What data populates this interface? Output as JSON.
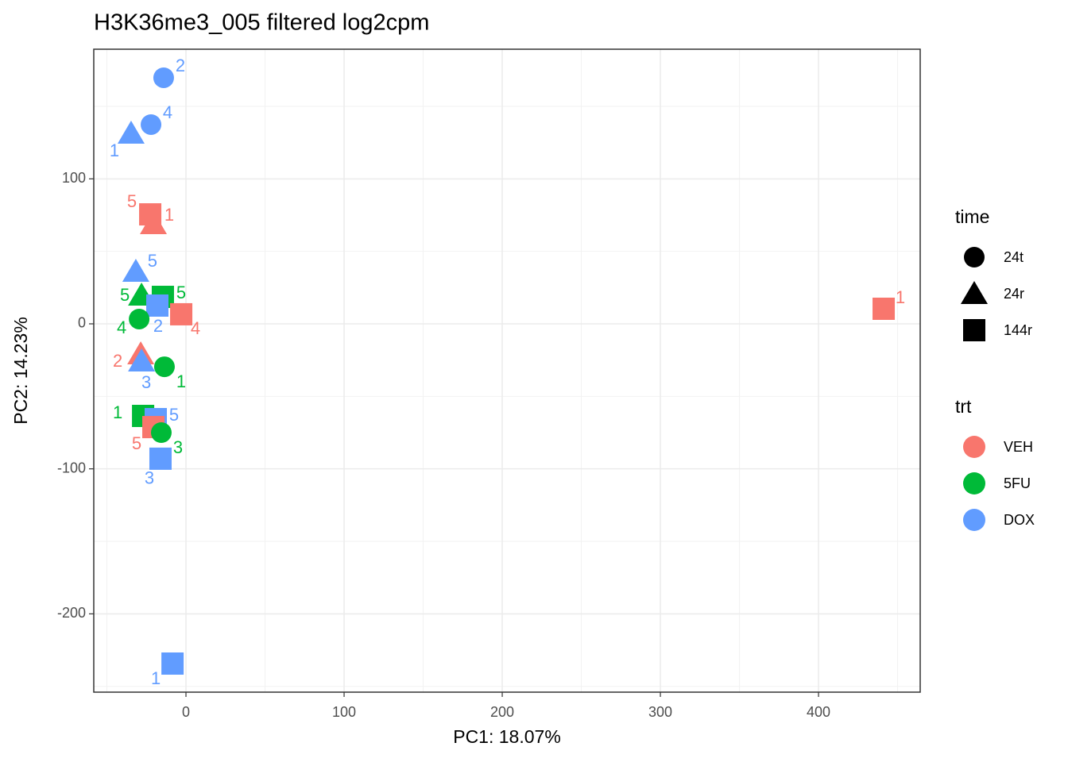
{
  "chart_data": {
    "type": "scatter",
    "title": "H3K36me3_005 filtered log2cpm",
    "x_label": "PC1: 18.07%",
    "y_label": "PC2: 14.23%",
    "xlim": [
      -58.3,
      464.3
    ],
    "ylim": [
      -254,
      189.4
    ],
    "xticks": [
      0,
      100,
      200,
      300,
      400
    ],
    "yticks": [
      -200,
      -100,
      0,
      100
    ],
    "grid": true,
    "x": [
      -14.1,
      -22.1,
      -34.7,
      -22.6,
      -20.6,
      -31.7,
      -28.1,
      -14.6,
      -18.1,
      -3.0,
      -29.6,
      441.2,
      -28.6,
      -28.1,
      -13.6,
      -27.1,
      -19.1,
      -20.6,
      -15.6,
      -16.1,
      -8.5
    ],
    "y": [
      169.7,
      137.4,
      131.4,
      75.5,
      69,
      36.1,
      19.7,
      18.6,
      12.6,
      6.6,
      3.3,
      10.4,
      -20.8,
      -25.7,
      -29.6,
      -63.5,
      -65.7,
      -71.2,
      -75,
      -93,
      -234.3
    ],
    "labels": [
      "2",
      "4",
      "1",
      "5",
      "1",
      "5",
      "5",
      "5",
      "2",
      "4",
      "4",
      "1",
      "2",
      "3",
      "1",
      "1",
      "5",
      "5",
      "3",
      "3",
      "1"
    ],
    "trt": [
      "DOX",
      "DOX",
      "DOX",
      "VEH",
      "VEH",
      "DOX",
      "5FU",
      "5FU",
      "DOX",
      "VEH",
      "5FU",
      "VEH",
      "VEH",
      "DOX",
      "5FU",
      "5FU",
      "DOX",
      "VEH",
      "5FU",
      "DOX",
      "DOX"
    ],
    "time": [
      "24t",
      "24t",
      "24r",
      "144r",
      "24r",
      "24r",
      "24r",
      "144r",
      "144r",
      "144r",
      "24t",
      "144r",
      "24r",
      "24r",
      "24t",
      "144r",
      "144r",
      "144r",
      "24t",
      "144r",
      "144r"
    ],
    "legends": [
      {
        "title": "time",
        "items": [
          "24t",
          "24r",
          "144r"
        ],
        "shapes": [
          "circle",
          "triangle",
          "square"
        ]
      },
      {
        "title": "trt",
        "items": [
          "VEH",
          "5FU",
          "DOX"
        ],
        "colors": [
          "#f8766d",
          "#00ba38",
          "#619cff"
        ]
      }
    ]
  }
}
